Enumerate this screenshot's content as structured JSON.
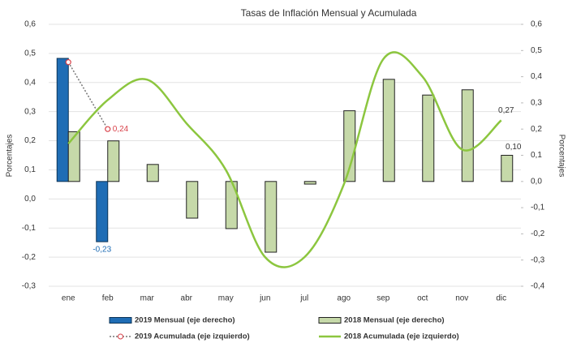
{
  "chart_data": {
    "type": "bar",
    "title": "Tasas de Inflación Mensual y Acumulada",
    "y_label": "Porcentajes",
    "y2_label": "Porcentajes",
    "categories": [
      "ene",
      "feb",
      "mar",
      "abr",
      "may",
      "jun",
      "jul",
      "ago",
      "sep",
      "oct",
      "nov",
      "dic"
    ],
    "ylim": [
      -0.3,
      0.6
    ],
    "yticks": [
      {
        "value": -0.3,
        "label": "-0,3"
      },
      {
        "value": -0.2,
        "label": "-0,2"
      },
      {
        "value": -0.1,
        "label": "-0,1"
      },
      {
        "value": 0,
        "label": "0,0"
      },
      {
        "value": 0.1,
        "label": "0,1"
      },
      {
        "value": 0.2,
        "label": "0,2"
      },
      {
        "value": 0.3,
        "label": "0,3"
      },
      {
        "value": 0.4,
        "label": "0,4"
      },
      {
        "value": 0.5,
        "label": "0,5"
      },
      {
        "value": 0.6,
        "label": "0,6"
      }
    ],
    "y2lim": [
      -0.4,
      0.6
    ],
    "y2ticks": [
      {
        "value": -0.4,
        "label": "-0,4"
      },
      {
        "value": -0.3,
        "label": "-0,3"
      },
      {
        "value": -0.2,
        "label": "-0,2"
      },
      {
        "value": -0.1,
        "label": "-0,1"
      },
      {
        "value": 0,
        "label": "0,0"
      },
      {
        "value": 0.1,
        "label": "0,1"
      },
      {
        "value": 0.2,
        "label": "0,2"
      },
      {
        "value": 0.3,
        "label": "0,3"
      },
      {
        "value": 0.4,
        "label": "0,4"
      },
      {
        "value": 0.5,
        "label": "0,5"
      },
      {
        "value": 0.6,
        "label": "0,6"
      }
    ],
    "grid": true,
    "series": [
      {
        "name": "2019 Mensual (eje derecho)",
        "type": "bar",
        "axis": "y2",
        "color": "#1f6db5",
        "values": [
          0.47,
          -0.23,
          null,
          null,
          null,
          null,
          null,
          null,
          null,
          null,
          null,
          null
        ],
        "value_labels": [
          null,
          "-0,23",
          null,
          null,
          null,
          null,
          null,
          null,
          null,
          null,
          null,
          null
        ]
      },
      {
        "name": "2018 Mensual (eje derecho)",
        "type": "bar",
        "axis": "y2",
        "color": "#c6d9a9",
        "values": [
          0.19,
          0.155,
          0.065,
          -0.14,
          -0.18,
          -0.27,
          -0.01,
          0.27,
          0.39,
          0.33,
          0.35,
          0.1
        ],
        "value_labels": [
          null,
          null,
          null,
          null,
          null,
          null,
          null,
          null,
          null,
          null,
          null,
          "0,10"
        ]
      },
      {
        "name": "2019 Acumulada (eje izquierdo)",
        "type": "line",
        "axis": "y",
        "color": "#d9434b",
        "values": [
          0.47,
          0.24,
          null,
          null,
          null,
          null,
          null,
          null,
          null,
          null,
          null,
          null
        ],
        "value_labels": [
          null,
          "0,24",
          null,
          null,
          null,
          null,
          null,
          null,
          null,
          null,
          null,
          null
        ]
      },
      {
        "name": "2018 Acumulada (eje izquierdo)",
        "type": "line",
        "axis": "y",
        "color": "#8cc63f",
        "values": [
          0.19,
          0.34,
          0.41,
          0.26,
          0.1,
          -0.2,
          -0.2,
          0.05,
          0.48,
          0.42,
          0.17,
          0.27
        ],
        "value_labels": [
          null,
          null,
          null,
          null,
          null,
          null,
          null,
          null,
          null,
          null,
          null,
          "0,27"
        ]
      }
    ]
  }
}
